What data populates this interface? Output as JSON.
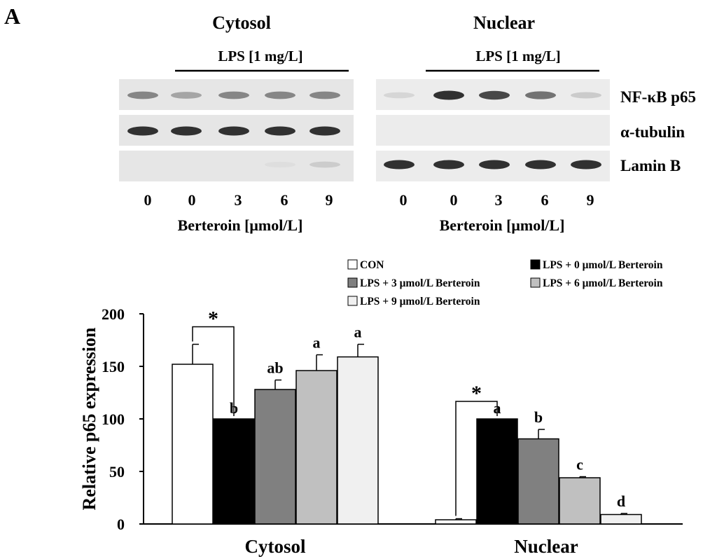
{
  "panel_label": "A",
  "blot": {
    "groups": [
      {
        "title": "Cytosol",
        "treatment_label": "LPS [1 mg/L]",
        "doses": [
          "0",
          "0",
          "3",
          "6",
          "9"
        ],
        "x_label": "Berteroin [μmol/L]"
      },
      {
        "title": "Nuclear",
        "treatment_label": "LPS [1 mg/L]",
        "doses": [
          "0",
          "0",
          "3",
          "6",
          "9"
        ],
        "x_label": "Berteroin [μmol/L]"
      }
    ],
    "row_labels": [
      "NF-κB p65",
      "α-tubulin",
      "Lamin B"
    ],
    "band_intensity": {
      "cytosol": {
        "p65": [
          0.45,
          0.3,
          0.45,
          0.45,
          0.45
        ],
        "tubulin": [
          0.85,
          0.85,
          0.85,
          0.85,
          0.85
        ],
        "laminb": [
          0,
          0,
          0,
          0.04,
          0.12
        ]
      },
      "nuclear": {
        "p65": [
          0.1,
          0.85,
          0.75,
          0.55,
          0.15
        ],
        "tubulin": [
          0,
          0,
          0,
          0,
          0
        ],
        "laminb": [
          0.85,
          0.85,
          0.85,
          0.85,
          0.85
        ]
      }
    }
  },
  "chart_data": {
    "type": "bar",
    "ylabel": "Relative p65 expression",
    "ylim": [
      0,
      200
    ],
    "yticks": [
      0,
      50,
      100,
      150,
      200
    ],
    "categories": [
      "Cytosol",
      "Nuclear"
    ],
    "series": [
      {
        "name": "CON",
        "color": "#ffffff",
        "values": [
          152,
          4
        ],
        "errors": [
          19,
          1
        ],
        "labels": [
          "",
          ""
        ]
      },
      {
        "name": "LPS + 0 μmol/L Berteroin",
        "color": "#000000",
        "values": [
          100,
          100
        ],
        "errors": [
          0,
          0
        ],
        "labels": [
          "b",
          "a"
        ]
      },
      {
        "name": "LPS + 3 μmol/L Berteroin",
        "color": "#808080",
        "values": [
          128,
          81
        ],
        "errors": [
          9,
          9
        ],
        "labels": [
          "ab",
          "b"
        ]
      },
      {
        "name": "LPS + 6 μmol/L Berteroin",
        "color": "#c0c0c0",
        "values": [
          146,
          44
        ],
        "errors": [
          15,
          1
        ],
        "labels": [
          "a",
          "c"
        ]
      },
      {
        "name": "LPS + 9 μmol/L Berteroin",
        "color": "#f0f0f0",
        "values": [
          159,
          9
        ],
        "errors": [
          12,
          1
        ],
        "labels": [
          "a",
          "d"
        ]
      }
    ],
    "significance": [
      {
        "category": "Cytosol",
        "from_series": 0,
        "to_series": 1,
        "symbol": "*"
      },
      {
        "category": "Nuclear",
        "from_series": 0,
        "to_series": 1,
        "symbol": "*"
      }
    ],
    "legend_position": "top-right"
  }
}
